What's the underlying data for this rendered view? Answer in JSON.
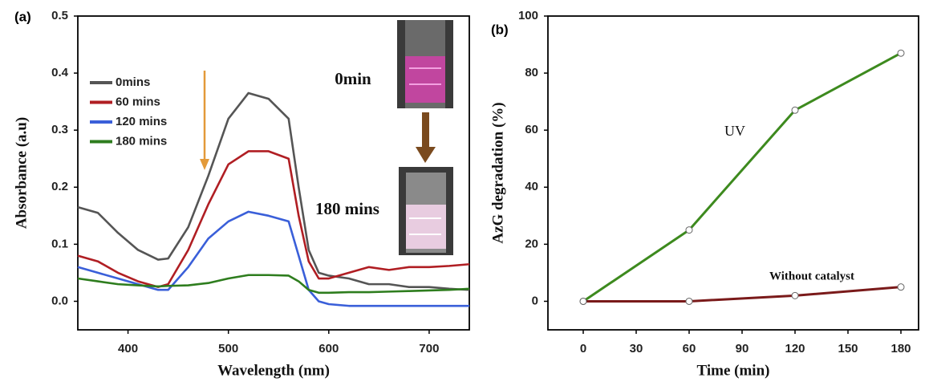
{
  "chart_data": [
    {
      "type": "line",
      "label": "(a)",
      "xlabel": "Wavelength (nm)",
      "ylabel": "Absorbance (a.u)",
      "x": [
        350,
        370,
        390,
        410,
        430,
        440,
        460,
        480,
        500,
        520,
        540,
        560,
        570,
        580,
        590,
        600,
        620,
        640,
        660,
        680,
        700,
        720,
        740
      ],
      "series": [
        {
          "name": "0mins",
          "color": "#555555",
          "values": [
            0.165,
            0.155,
            0.12,
            0.09,
            0.073,
            0.075,
            0.13,
            0.22,
            0.32,
            0.365,
            0.355,
            0.32,
            0.2,
            0.09,
            0.05,
            0.045,
            0.04,
            0.03,
            0.03,
            0.025,
            0.025,
            0.022,
            0.02
          ]
        },
        {
          "name": "60 mins",
          "color": "#b01e23",
          "values": [
            0.08,
            0.07,
            0.05,
            0.035,
            0.025,
            0.03,
            0.09,
            0.17,
            0.24,
            0.263,
            0.263,
            0.25,
            0.15,
            0.07,
            0.04,
            0.04,
            0.05,
            0.06,
            0.055,
            0.06,
            0.06,
            0.062,
            0.065
          ]
        },
        {
          "name": "120 mins",
          "color": "#3a5fd9",
          "values": [
            0.06,
            0.05,
            0.04,
            0.03,
            0.02,
            0.02,
            0.06,
            0.11,
            0.14,
            0.157,
            0.15,
            0.14,
            0.08,
            0.02,
            0.0,
            -0.005,
            -0.008,
            -0.008,
            -0.008,
            -0.008,
            -0.008,
            -0.008,
            -0.008
          ]
        },
        {
          "name": "180 mins",
          "color": "#2e7d1e",
          "values": [
            0.04,
            0.035,
            0.03,
            0.028,
            0.026,
            0.027,
            0.028,
            0.032,
            0.04,
            0.046,
            0.046,
            0.045,
            0.035,
            0.02,
            0.015,
            0.015,
            0.016,
            0.016,
            0.017,
            0.018,
            0.019,
            0.02,
            0.022
          ]
        }
      ],
      "xlim": [
        350,
        740
      ],
      "xticks": [
        400,
        500,
        600,
        700
      ],
      "ylim": [
        -0.05,
        0.5
      ],
      "yticks": [
        {
          "value": 0,
          "label": "0.0"
        },
        0.1,
        0.2,
        0.3,
        0.4,
        0.5
      ],
      "legend": "upper left",
      "annotations": [
        "0min",
        "180 mins"
      ]
    },
    {
      "type": "line",
      "label": "(b)",
      "xlabel": "Time (min)",
      "ylabel": "AzG degradation (%)",
      "x": [
        0,
        60,
        120,
        180
      ],
      "series": [
        {
          "name": "UV",
          "color": "#3d8a1e",
          "values": [
            0,
            25,
            67,
            87
          ]
        },
        {
          "name": "Without catalyst",
          "color": "#7a1a1a",
          "values": [
            0,
            0,
            2,
            5
          ]
        }
      ],
      "xlim": [
        -20,
        190
      ],
      "xticks": [
        0,
        30,
        60,
        90,
        120,
        150,
        180
      ],
      "ylim": [
        -10,
        100
      ],
      "yticks": [
        0,
        20,
        40,
        60,
        80,
        100
      ],
      "markers": true
    }
  ]
}
